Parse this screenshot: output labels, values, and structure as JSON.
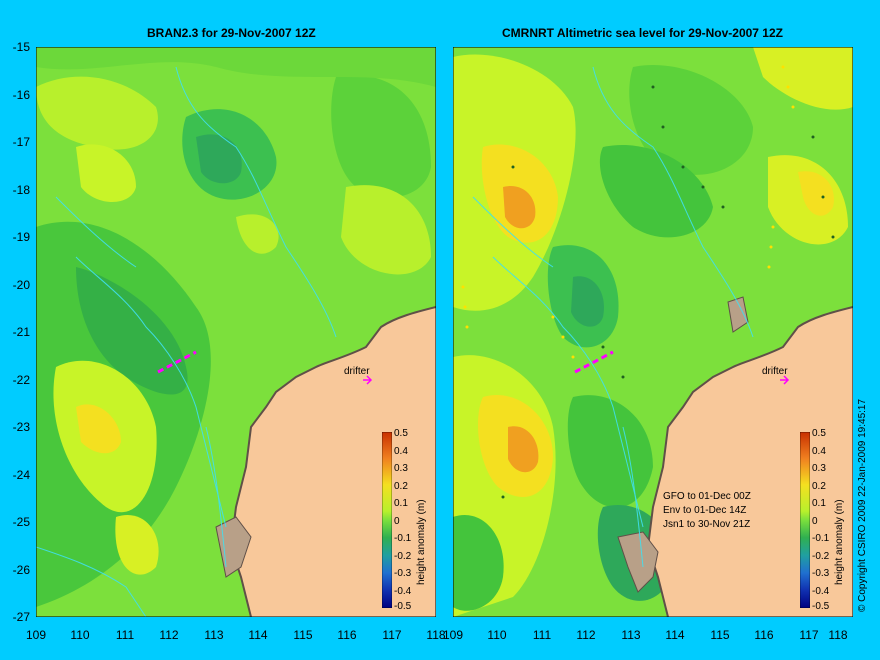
{
  "left_panel": {
    "title": "BRAN2.3 for 29-Nov-2007 12Z",
    "drifter_label": "drifter"
  },
  "right_panel": {
    "title": "CMRNRT Altimetric sea level  for 29-Nov-2007 12Z",
    "drifter_label": "drifter",
    "notes": [
      "GFO to 01-Dec 00Z",
      "Env to 01-Dec 14Z",
      "Jsn1 to 30-Nov 21Z"
    ]
  },
  "axes": {
    "y_ticks": [
      "-15",
      "-16",
      "-17",
      "-18",
      "-19",
      "-20",
      "-21",
      "-22",
      "-23",
      "-24",
      "-25",
      "-26",
      "-27"
    ],
    "x_ticks": [
      "109",
      "110",
      "111",
      "112",
      "113",
      "114",
      "115",
      "116",
      "117",
      "118"
    ]
  },
  "colorbar": {
    "title": "height anomaly (m)",
    "ticks": [
      "0.5",
      "0.4",
      "0.3",
      "0.2",
      "0.1",
      "0",
      "-0.1",
      "-0.2",
      "-0.3",
      "-0.4",
      "-0.5"
    ]
  },
  "credit": "© Copyright CSIRO 2009   22-Jan-2009 19:45:17",
  "colors": {
    "background": "#00ccff",
    "land": "#f8c89a",
    "contour": "#40e0f0",
    "drifter": "#ff00ff"
  }
}
